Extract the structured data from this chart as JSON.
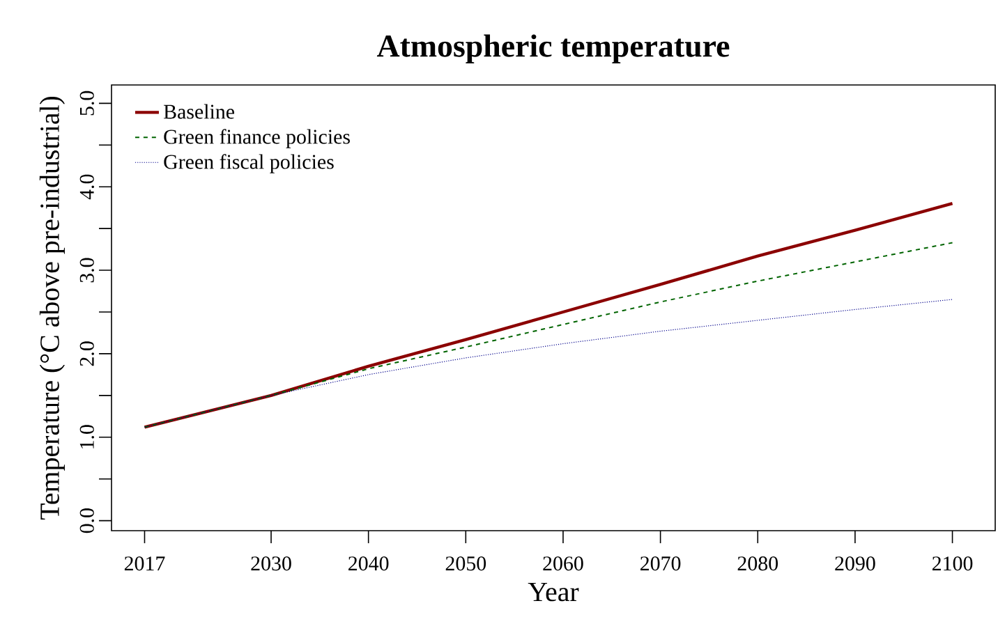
{
  "chart_data": {
    "type": "line",
    "title": "Atmospheric temperature",
    "xlabel": "Year",
    "ylabel": "Temperature (°C above pre-industrial)",
    "x": [
      2017,
      2030,
      2040,
      2050,
      2060,
      2070,
      2080,
      2090,
      2100
    ],
    "series": [
      {
        "name": "Baseline",
        "color": "#8b0000",
        "line_style": "solid",
        "values": [
          1.12,
          1.5,
          1.85,
          2.17,
          2.5,
          2.83,
          3.17,
          3.48,
          3.8
        ]
      },
      {
        "name": "Green finance policies",
        "color": "#006400",
        "line_style": "dashed",
        "values": [
          1.12,
          1.5,
          1.82,
          2.08,
          2.35,
          2.62,
          2.87,
          3.1,
          3.33
        ]
      },
      {
        "name": "Green fiscal policies",
        "color": "#00008b",
        "line_style": "dotted",
        "values": [
          1.12,
          1.5,
          1.75,
          1.95,
          2.12,
          2.27,
          2.4,
          2.53,
          2.65
        ]
      }
    ],
    "xlim": [
      2013.6,
      2104.4
    ],
    "ylim": [
      -0.12,
      5.22
    ],
    "xticks": [
      2017,
      2030,
      2040,
      2050,
      2060,
      2070,
      2080,
      2090,
      2100
    ],
    "yticks": [
      {
        "value": 0,
        "label": "0.0"
      },
      {
        "value": 0.5,
        "label": null
      },
      {
        "value": 1,
        "label": "1.0"
      },
      {
        "value": 1.5,
        "label": null
      },
      {
        "value": 2,
        "label": "2.0"
      },
      {
        "value": 2.5,
        "label": null
      },
      {
        "value": 3,
        "label": "3.0"
      },
      {
        "value": 3.5,
        "label": null
      },
      {
        "value": 4,
        "label": "4.0"
      },
      {
        "value": 4.5,
        "label": null
      },
      {
        "value": 5,
        "label": "5.0"
      }
    ],
    "legend": "top left",
    "grid": false
  }
}
